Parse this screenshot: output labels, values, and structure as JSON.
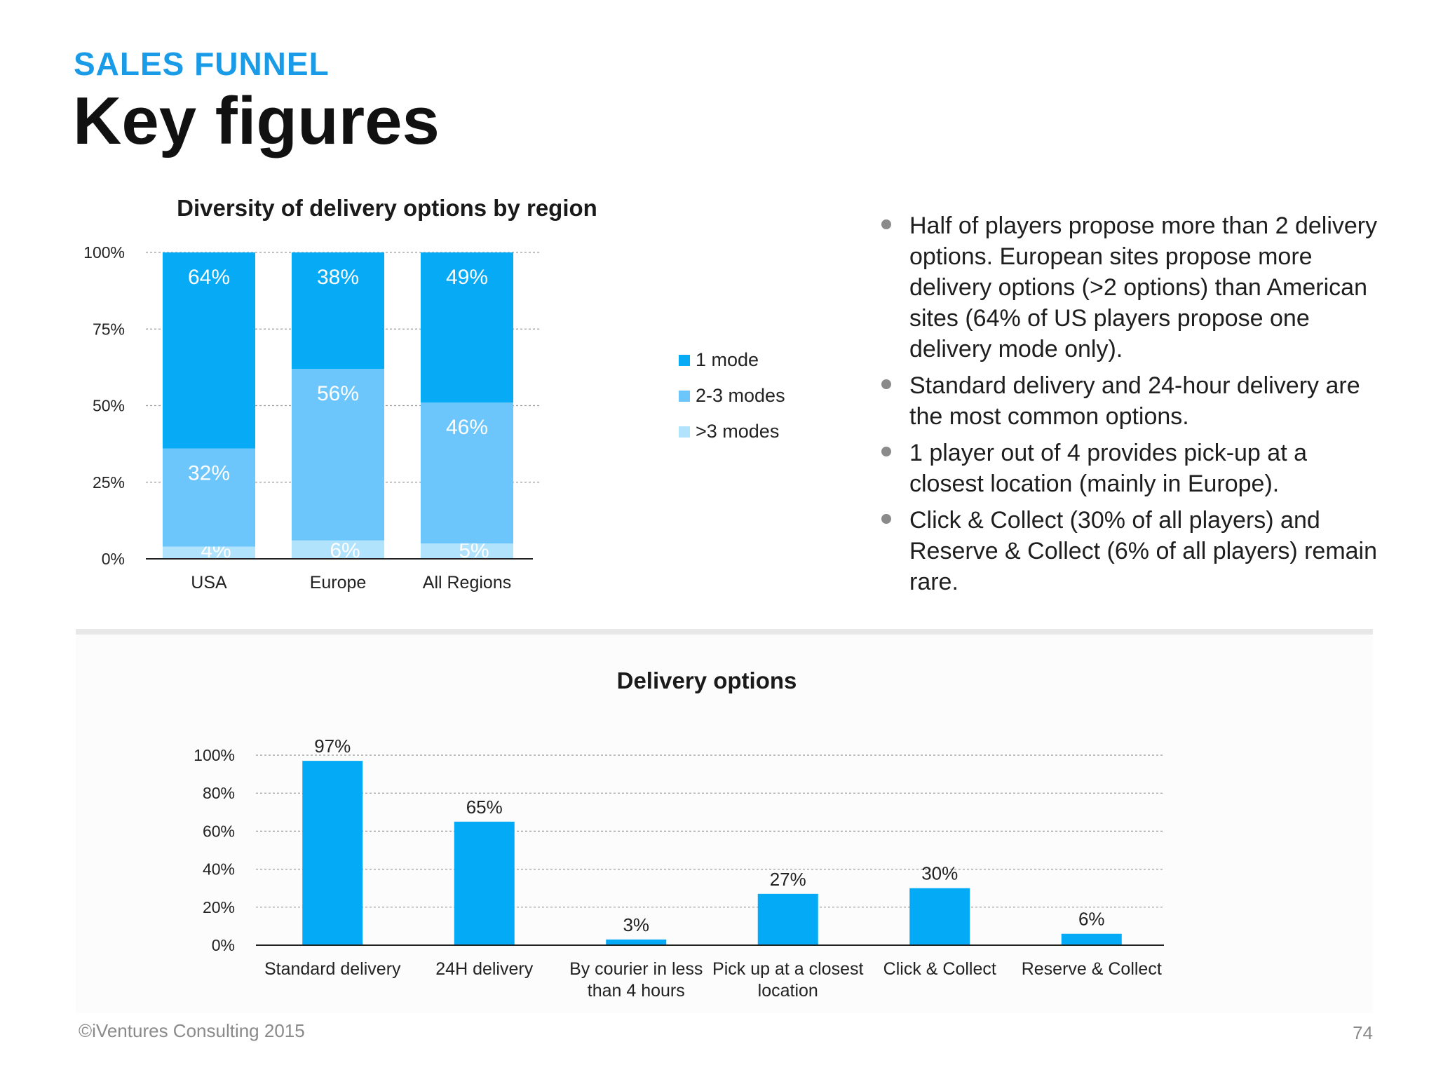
{
  "header": {
    "kicker": "SALES FUNNEL",
    "title": "Key figures"
  },
  "colors": {
    "accent": "#1a9be8",
    "mode1": "#07aaf5",
    "mode2": "#6cc6fb",
    "mode3": "#b2e3fd",
    "bar": "#04aaf5"
  },
  "chart_data": [
    {
      "type": "bar",
      "stacked": true,
      "title": "Diversity of delivery options by region",
      "categories": [
        "USA",
        "Europe",
        "All Regions"
      ],
      "series": [
        {
          "name": ">3 modes",
          "values": [
            4,
            6,
            5
          ],
          "labels": [
            "4%",
            "6%",
            "5%"
          ]
        },
        {
          "name": "2-3 modes",
          "values": [
            32,
            56,
            46
          ],
          "labels": [
            "32%",
            "56%",
            "46%"
          ]
        },
        {
          "name": "1 mode",
          "values": [
            64,
            38,
            49
          ],
          "labels": [
            "64%",
            "38%",
            "49%"
          ]
        }
      ],
      "legend": [
        "1 mode",
        "2-3 modes",
        ">3 modes"
      ],
      "legend_position": "right",
      "yticks": [
        "0%",
        "25%",
        "50%",
        "75%",
        "100%"
      ],
      "ylim": [
        0,
        100
      ],
      "grid": true
    },
    {
      "type": "bar",
      "title": "Delivery options",
      "categories": [
        [
          "Standard delivery"
        ],
        [
          "24H delivery"
        ],
        [
          "By courier in less",
          "than 4 hours"
        ],
        [
          "Pick up at a closest",
          "location"
        ],
        [
          "Click & Collect"
        ],
        [
          "Reserve & Collect"
        ]
      ],
      "values": [
        97,
        65,
        3,
        27,
        30,
        6
      ],
      "labels": [
        "97%",
        "65%",
        "3%",
        "27%",
        "30%",
        "6%"
      ],
      "yticks": [
        "0%",
        "20%",
        "40%",
        "60%",
        "80%",
        "100%"
      ],
      "ylim": [
        0,
        100
      ],
      "grid": true
    }
  ],
  "bullets": [
    "Half of players propose more than 2 delivery options. European sites propose more delivery options (>2 options) than American sites (64% of US players propose one delivery mode only).",
    "Standard delivery and 24-hour delivery are the most common options.",
    "1 player out of 4 provides pick-up at a closest location (mainly in Europe).",
    "Click & Collect (30% of all players) and Reserve & Collect (6% of all players) remain rare."
  ],
  "footer": {
    "copyright": "©iVentures Consulting 2015",
    "page_number": "74"
  }
}
